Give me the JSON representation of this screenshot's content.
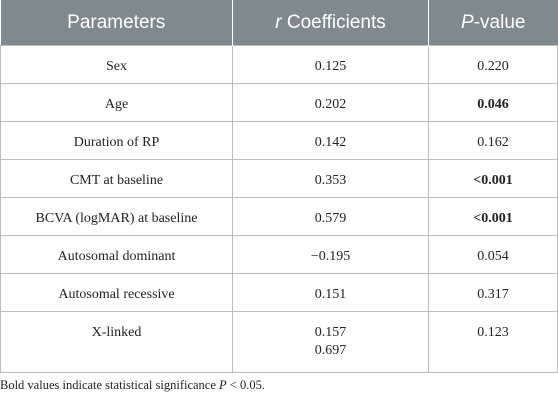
{
  "table": {
    "headers": {
      "col1": "Parameters",
      "col2_italic": "r",
      "col2_rest": " Coefficients",
      "col3_italic": "P",
      "col3_rest": "-value"
    },
    "rows": [
      {
        "parameter": "Sex",
        "coefficient": "0.125",
        "p_value": "0.220",
        "significant": false
      },
      {
        "parameter": "Age",
        "coefficient": "0.202",
        "p_value": "0.046",
        "significant": true
      },
      {
        "parameter": "Duration of RP",
        "coefficient": "0.142",
        "p_value": "0.162",
        "significant": false
      },
      {
        "parameter": "CMT at baseline",
        "coefficient": "0.353",
        "p_value": "<0.001",
        "significant": true
      },
      {
        "parameter": "BCVA (logMAR) at baseline",
        "coefficient": "0.579",
        "p_value": "<0.001",
        "significant": true
      },
      {
        "parameter": "Autosomal dominant",
        "coefficient": "−0.195",
        "p_value": "0.054",
        "significant": false
      },
      {
        "parameter": "Autosomal recessive",
        "coefficient": "0.151",
        "p_value": "0.317",
        "significant": false
      },
      {
        "parameter": "X-linked",
        "coefficient": "0.157",
        "coefficient_extra": "0.697",
        "p_value": "0.123",
        "significant": false
      }
    ]
  },
  "footnote": {
    "text_before": "Bold values indicate statistical significance ",
    "italic": "P",
    "text_after": " < 0.05."
  },
  "colors": {
    "header_bg": "#7f8a8f",
    "header_text": "#ffffff",
    "border": "#b9bec1"
  }
}
